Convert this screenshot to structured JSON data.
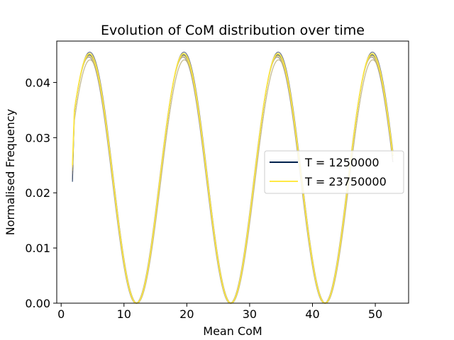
{
  "chart_data": {
    "type": "line",
    "title": "Evolution of CoM distribution over time",
    "xlabel": "Mean CoM",
    "ylabel": "Normalised Frequency",
    "xlim": [
      -0.7,
      55.3
    ],
    "ylim": [
      0,
      0.0475
    ],
    "xticks": [
      0,
      10,
      20,
      30,
      40,
      50
    ],
    "xtick_labels": [
      "0",
      "10",
      "20",
      "30",
      "40",
      "50"
    ],
    "yticks": [
      0.0,
      0.01,
      0.02,
      0.03,
      0.04
    ],
    "ytick_labels": [
      "0.00",
      "0.01",
      "0.02",
      "0.03",
      "0.04"
    ],
    "x_range": [
      1.8,
      52.8
    ],
    "period": 15,
    "peak_positions": [
      4.5,
      19.5,
      34.5,
      49.5
    ],
    "series": [
      {
        "name": "T = 1250000",
        "color": "#00204c",
        "in_legend": true,
        "peak": 0.045,
        "phase": 0.0,
        "start_value": 0.022
      },
      {
        "name": "",
        "color": "#4c566b",
        "in_legend": false,
        "peak": 0.0455,
        "phase": 0.05,
        "start_value": 0.0224
      },
      {
        "name": "",
        "color": "#7d7b78",
        "in_legend": false,
        "peak": 0.0446,
        "phase": -0.1,
        "start_value": 0.0234
      },
      {
        "name": "",
        "color": "#b3a66f",
        "in_legend": false,
        "peak": 0.0441,
        "phase": 0.1,
        "start_value": 0.024
      },
      {
        "name": "",
        "color": "#e3cc4f",
        "in_legend": false,
        "peak": 0.0448,
        "phase": -0.05,
        "start_value": 0.0246
      },
      {
        "name": "T = 23750000",
        "color": "#ffe945",
        "in_legend": true,
        "peak": 0.0452,
        "phase": 0.0,
        "start_value": 0.025
      }
    ],
    "legend_position": "center-right",
    "grid": false
  }
}
